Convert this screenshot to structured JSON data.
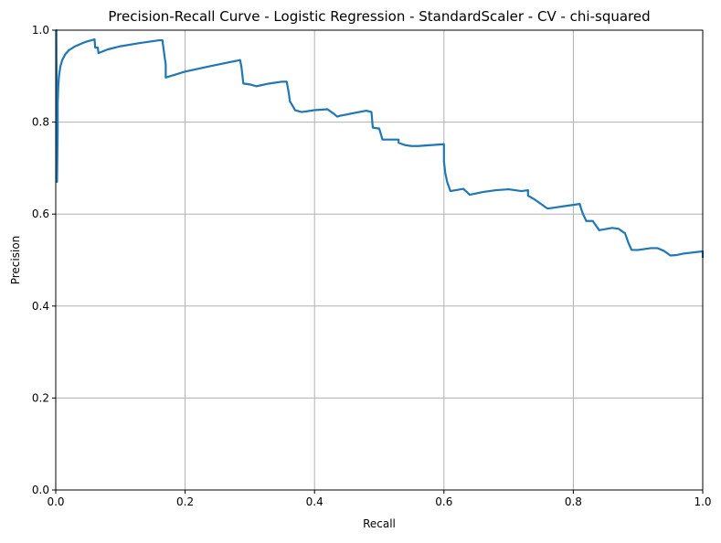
{
  "chart_data": {
    "type": "line",
    "title": "Precision-Recall Curve - Logistic Regression - StandardScaler - CV - chi-squared",
    "xlabel": "Recall",
    "ylabel": "Precision",
    "xlim": [
      0,
      1
    ],
    "ylim": [
      0,
      1
    ],
    "xticks": [
      0.0,
      0.2,
      0.4,
      0.6,
      0.8,
      1.0
    ],
    "yticks": [
      0.0,
      0.2,
      0.4,
      0.6,
      0.8,
      1.0
    ],
    "xtick_labels": [
      "0.0",
      "0.2",
      "0.4",
      "0.6",
      "0.8",
      "1.0"
    ],
    "ytick_labels": [
      "0.0",
      "0.2",
      "0.4",
      "0.6",
      "0.8",
      "1.0"
    ],
    "grid": true,
    "legend": "none",
    "colors": {
      "series": "#1f77b4",
      "grid": "#b0b0b0",
      "axes": "#000000"
    },
    "series": [
      {
        "x": [
          0.0,
          0.001,
          0.002,
          0.002,
          0.003,
          0.003,
          0.004,
          0.005,
          0.007,
          0.01,
          0.015,
          0.02,
          0.03,
          0.045,
          0.06,
          0.061,
          0.065,
          0.066,
          0.08,
          0.1,
          0.13,
          0.16,
          0.165,
          0.166,
          0.168,
          0.17,
          0.17,
          0.2,
          0.24,
          0.285,
          0.287,
          0.29,
          0.3,
          0.31,
          0.33,
          0.35,
          0.357,
          0.36,
          0.362,
          0.365,
          0.37,
          0.38,
          0.4,
          0.42,
          0.43,
          0.435,
          0.44,
          0.48,
          0.488,
          0.49,
          0.5,
          0.505,
          0.51,
          0.53,
          0.53,
          0.54,
          0.55,
          0.56,
          0.6,
          0.6,
          0.602,
          0.605,
          0.61,
          0.63,
          0.64,
          0.66,
          0.68,
          0.7,
          0.72,
          0.73,
          0.73,
          0.74,
          0.76,
          0.79,
          0.81,
          0.812,
          0.815,
          0.82,
          0.83,
          0.84,
          0.86,
          0.87,
          0.88,
          0.885,
          0.89,
          0.9,
          0.92,
          0.93,
          0.94,
          0.95,
          0.96,
          0.97,
          1.0,
          1.0
        ],
        "y": [
          1.0,
          1.0,
          0.67,
          0.67,
          0.78,
          0.84,
          0.88,
          0.9,
          0.92,
          0.935,
          0.948,
          0.956,
          0.965,
          0.974,
          0.98,
          0.962,
          0.962,
          0.95,
          0.958,
          0.965,
          0.972,
          0.978,
          0.978,
          0.966,
          0.945,
          0.925,
          0.897,
          0.91,
          0.922,
          0.935,
          0.92,
          0.884,
          0.882,
          0.878,
          0.884,
          0.888,
          0.888,
          0.865,
          0.845,
          0.838,
          0.826,
          0.822,
          0.826,
          0.828,
          0.818,
          0.812,
          0.814,
          0.825,
          0.822,
          0.788,
          0.786,
          0.762,
          0.762,
          0.762,
          0.755,
          0.75,
          0.748,
          0.748,
          0.752,
          0.715,
          0.69,
          0.67,
          0.65,
          0.655,
          0.642,
          0.648,
          0.652,
          0.654,
          0.65,
          0.652,
          0.64,
          0.632,
          0.612,
          0.618,
          0.622,
          0.612,
          0.6,
          0.585,
          0.585,
          0.565,
          0.57,
          0.568,
          0.558,
          0.538,
          0.522,
          0.522,
          0.526,
          0.526,
          0.52,
          0.51,
          0.511,
          0.514,
          0.519,
          0.505
        ]
      }
    ]
  }
}
